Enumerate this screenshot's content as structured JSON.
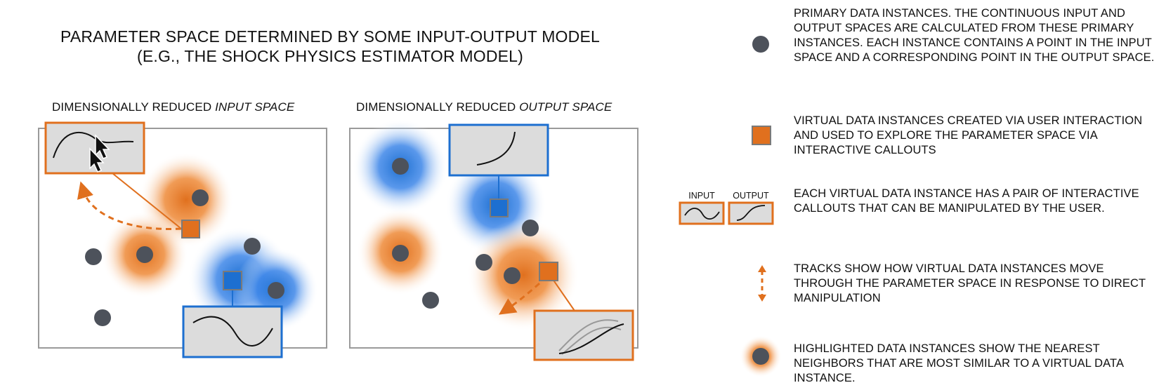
{
  "title": {
    "line1": "PARAMETER SPACE DETERMINED BY SOME INPUT-OUTPUT MODEL",
    "line2": "(E.G., THE SHOCK PHYSICS ESTIMATOR MODEL)"
  },
  "panels": {
    "input": {
      "prefix": "DIMENSIONALLY REDUCED ",
      "emph": "INPUT SPACE"
    },
    "output": {
      "prefix": "DIMENSIONALLY REDUCED ",
      "emph": "OUTPUT SPACE"
    }
  },
  "legend": {
    "primary": "PRIMARY DATA INSTANCES.  THE CONTINUOUS INPUT AND OUTPUT SPACES ARE CALCULATED FROM THESE PRIMARY INSTANCES.  EACH INSTANCE CONTAINS A POINT IN THE INPUT SPACE AND A CORRESPONDING POINT IN THE OUTPUT SPACE.",
    "virtual": "VIRTUAL DATA INSTANCES CREATED VIA USER INTERACTION AND USED TO EXPLORE THE PARAMETER SPACE VIA INTERACTIVE CALLOUTS",
    "callouts": "EACH VIRTUAL DATA INSTANCE HAS A PAIR OF INTERACTIVE CALLOUTS THAT CAN BE MANIPULATED BY THE USER.",
    "tracks": "TRACKS SHOW HOW VIRTUAL DATA INSTANCES MOVE THROUGH THE PARAMETER SPACE IN RESPONSE TO DIRECT MANIPULATION",
    "highlighted": "HIGHLIGHTED DATA INSTANCES SHOW THE NEAREST NEIGHBORS THAT ARE MOST SIMILAR TO A VIRTUAL DATA INSTANCE.",
    "input_label": "INPUT",
    "output_label": "OUTPUT"
  },
  "colors": {
    "orange": "#e0701e",
    "blue": "#1d6fd0",
    "point": "#4d525b",
    "box_fill": "#dcdcdc",
    "frame": "#9a9a9a"
  },
  "icons": [
    "cursor-icon",
    "primary-point-icon",
    "virtual-point-icon",
    "track-arrow-icon",
    "highlight-point-icon"
  ]
}
